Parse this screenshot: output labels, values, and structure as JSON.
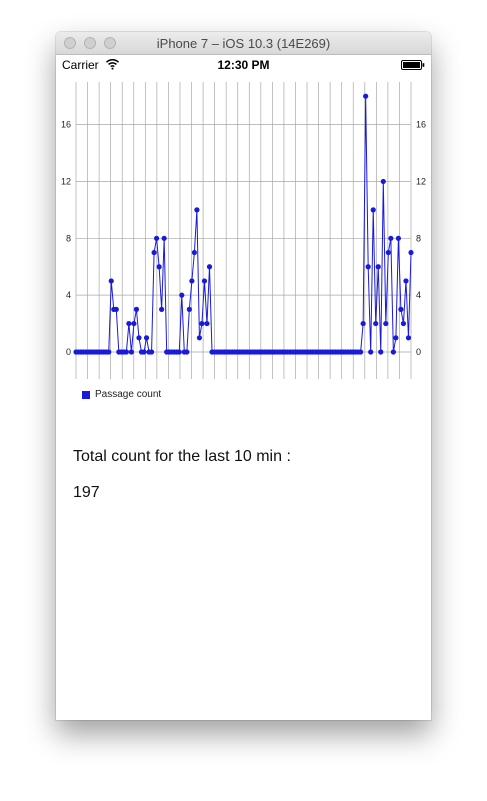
{
  "window": {
    "title": "iPhone 7 – iOS 10.3 (14E269)"
  },
  "status_bar": {
    "carrier": "Carrier",
    "time": "12:30 PM"
  },
  "icons": {
    "wifi": "wifi-icon",
    "battery": "battery-icon"
  },
  "summary": {
    "label": "Total count for the last 10 min :",
    "value": "197"
  },
  "colors": {
    "series": "#1a1adb",
    "grid": "#a8a8a8"
  },
  "chart_data": {
    "type": "line",
    "series": [
      {
        "name": "Passage count",
        "values": [
          0,
          0,
          0,
          0,
          0,
          0,
          0,
          0,
          0,
          0,
          0,
          0,
          0,
          0,
          5,
          3,
          3,
          0,
          0,
          0,
          0,
          2,
          0,
          2,
          3,
          1,
          0,
          0,
          1,
          0,
          0,
          7,
          8,
          6,
          3,
          8,
          0,
          0,
          0,
          0,
          0,
          0,
          4,
          0,
          0,
          3,
          5,
          7,
          10,
          1,
          2,
          5,
          2,
          6,
          0,
          0,
          0,
          0,
          0,
          0,
          0,
          0,
          0,
          0,
          0,
          0,
          0,
          0,
          0,
          0,
          0,
          0,
          0,
          0,
          0,
          0,
          0,
          0,
          0,
          0,
          0,
          0,
          0,
          0,
          0,
          0,
          0,
          0,
          0,
          0,
          0,
          0,
          0,
          0,
          0,
          0,
          0,
          0,
          0,
          0,
          0,
          0,
          0,
          0,
          0,
          0,
          0,
          0,
          0,
          0,
          0,
          0,
          0,
          0,
          2,
          18,
          6,
          0,
          10,
          2,
          6,
          0,
          12,
          2,
          7,
          8,
          0,
          1,
          8,
          3,
          2,
          5,
          1,
          7
        ]
      }
    ],
    "ylim": [
      0,
      19
    ],
    "yticks": [
      "0",
      "4",
      "8",
      "12",
      "16"
    ],
    "grid": true,
    "legend": "bottom-left"
  }
}
